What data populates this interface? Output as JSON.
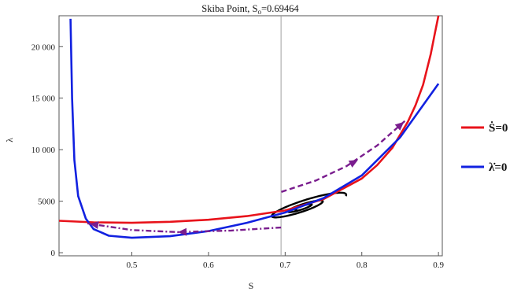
{
  "chart_data": {
    "type": "line",
    "title": "Skiba Point, S",
    "title_sub": "o",
    "title_tail": "=0.69464",
    "xlabel": "S",
    "ylabel": "λ",
    "xlim": [
      0.405,
      0.905
    ],
    "ylim": [
      -300,
      23000
    ],
    "x_ticks": [
      0.5,
      0.6,
      0.7,
      0.8,
      0.9
    ],
    "x_tick_labels": [
      "0.5",
      "0.6",
      "0.7",
      "0.8",
      "0.9"
    ],
    "y_ticks": [
      0,
      5000,
      10000,
      15000,
      20000
    ],
    "y_tick_labels": [
      "0",
      "5000",
      "10 000",
      "15 000",
      "20 000"
    ],
    "skiba_x": 0.69464,
    "legend_position": "right",
    "colors": {
      "s_dot": "#e8131b",
      "lambda_dot": "#1121e0",
      "trajectory": "#7a1d8e",
      "spiral": "#000000",
      "skiba_line": "#a0a0a0"
    },
    "series": [
      {
        "name": "Ṡ=0",
        "x": [
          0.405,
          0.45,
          0.5,
          0.55,
          0.6,
          0.65,
          0.7,
          0.75,
          0.8,
          0.82,
          0.84,
          0.86,
          0.87,
          0.88,
          0.89,
          0.895,
          0.9
        ],
        "y": [
          3100,
          2950,
          2900,
          3000,
          3200,
          3550,
          4100,
          5200,
          7200,
          8500,
          10200,
          12700,
          14300,
          16300,
          19300,
          21200,
          23000
        ]
      },
      {
        "name": "λ̇=0",
        "x": [
          0.42,
          0.422,
          0.425,
          0.43,
          0.44,
          0.45,
          0.47,
          0.5,
          0.55,
          0.6,
          0.65,
          0.7,
          0.75,
          0.8,
          0.85,
          0.9
        ],
        "y": [
          22700,
          15000,
          9000,
          5500,
          3300,
          2300,
          1650,
          1450,
          1600,
          2100,
          2900,
          3900,
          5300,
          7500,
          11200,
          16400
        ]
      }
    ]
  }
}
